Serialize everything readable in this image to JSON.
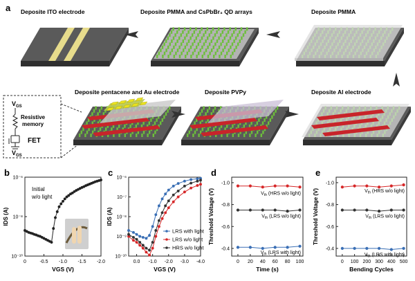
{
  "panel_a": {
    "letter": "a",
    "steps": [
      "Deposite ITO electrode",
      "Deposite PMMA and CsPbBr₃ QD arrays",
      "Deposite PMMA",
      "Deposite Al electrode",
      "Deposite PVPy",
      "Deposite pentacene and Au electrode"
    ],
    "circuit": {
      "vgs_top": "V",
      "vgs_top_sub": "GS",
      "memory_label_1": "Resistive",
      "memory_label_2": "memory",
      "fet_label": "FET",
      "vgs_bot": "V",
      "vgs_bot_sub": "GS"
    }
  },
  "colors": {
    "substrate": "#505050",
    "ito": "#e7dc8c",
    "pillar": "#6dbf3b",
    "al": "#c8242a",
    "au": "#e9e21f",
    "arrow": "#333333",
    "lrs_light": "#3a6fb5",
    "lrs_dark": "#333333",
    "hrs_dark": "#d62728"
  },
  "chart_data": [
    {
      "panel": "b",
      "type": "line",
      "ylabel": "IDS (A)",
      "xlabel": "VGS (V)",
      "annotation": [
        "Initial",
        "w/o light"
      ],
      "x_ticks": [
        "0",
        "-0.5",
        "-1.0",
        "-1.5",
        "-2.0"
      ],
      "y_ticks": [
        "10⁻⁶",
        "10⁻⁸",
        "10⁻¹⁰"
      ],
      "log_y": true,
      "xlim": [
        0,
        -2.0
      ],
      "ylim_exp": [
        -10,
        -6
      ],
      "series": [
        {
          "x": [
            0,
            -0.05,
            -0.1,
            -0.15,
            -0.2,
            -0.25,
            -0.3,
            -0.35,
            -0.4,
            -0.45,
            -0.5,
            -0.55,
            -0.6,
            -0.65,
            -0.7,
            -0.75,
            -0.8,
            -0.85,
            -0.9,
            -0.95,
            -1.0,
            -1.05,
            -1.1,
            -1.15,
            -1.2,
            -1.25,
            -1.3,
            -1.35,
            -1.4,
            -1.45,
            -1.5,
            -1.55,
            -1.6,
            -1.65,
            -1.7,
            -1.75,
            -1.8,
            -1.85,
            -1.9,
            -1.95,
            -2.0
          ],
          "logy": [
            -8.7,
            -8.75,
            -8.8,
            -8.83,
            -8.86,
            -8.9,
            -8.93,
            -8.97,
            -9.0,
            -9.05,
            -9.1,
            -9.15,
            -9.2,
            -9.25,
            -9.3,
            -8.6,
            -8.05,
            -7.75,
            -7.5,
            -7.35,
            -7.22,
            -7.1,
            -7.0,
            -6.93,
            -6.85,
            -6.8,
            -6.73,
            -6.67,
            -6.62,
            -6.57,
            -6.52,
            -6.48,
            -6.43,
            -6.39,
            -6.35,
            -6.31,
            -6.27,
            -6.23,
            -6.2,
            -6.17,
            -6.14
          ]
        }
      ]
    },
    {
      "panel": "c",
      "type": "line",
      "ylabel": "IDS (A)",
      "xlabel": "VGS (V)",
      "x_ticks": [
        "0.0",
        "-1.0",
        "-2.0",
        "-3.0",
        "-4.0"
      ],
      "y_ticks": [
        "10⁻⁶",
        "10⁻⁷",
        "10⁻⁸",
        "10⁻⁹",
        "10⁻¹⁰"
      ],
      "log_y": true,
      "xlim": [
        0.5,
        -4.0
      ],
      "ylim_exp": [
        -10,
        -6
      ],
      "legend": "right",
      "series": [
        {
          "name": "LRS with light",
          "color": "#3a6fb5",
          "x": [
            0.5,
            0.2,
            0.0,
            -0.2,
            -0.4,
            -0.6,
            -0.8,
            -1.0,
            -1.2,
            -1.4,
            -1.6,
            -1.8,
            -2.0,
            -2.3,
            -2.6,
            -3.0,
            -3.4,
            -3.8,
            -4.0
          ],
          "logy": [
            -8.7,
            -8.8,
            -8.9,
            -9.0,
            -9.05,
            -9.1,
            -8.95,
            -8.5,
            -7.9,
            -7.45,
            -7.1,
            -6.85,
            -6.65,
            -6.45,
            -6.32,
            -6.2,
            -6.12,
            -6.08,
            -6.06
          ]
        },
        {
          "name": "LRS w/o light",
          "color": "#d62728",
          "x": [
            0.5,
            0.2,
            0.0,
            -0.2,
            -0.4,
            -0.6,
            -0.8,
            -1.0,
            -1.2,
            -1.4,
            -1.6,
            -1.8,
            -2.0,
            -2.3,
            -2.6,
            -3.0,
            -3.4,
            -3.8,
            -4.0
          ],
          "logy": [
            -9.0,
            -9.2,
            -9.3,
            -9.45,
            -9.6,
            -9.8,
            -9.95,
            -9.6,
            -9.0,
            -8.5,
            -8.1,
            -7.8,
            -7.55,
            -7.25,
            -7.0,
            -6.75,
            -6.55,
            -6.42,
            -6.36
          ]
        },
        {
          "name": "HRS w/o light",
          "color": "#333333",
          "x": [
            0.5,
            0.2,
            0.0,
            -0.2,
            -0.4,
            -0.6,
            -0.8,
            -1.0,
            -1.2,
            -1.4,
            -1.6,
            -1.8,
            -2.0,
            -2.3,
            -2.6,
            -3.0,
            -3.4,
            -3.8,
            -4.0
          ],
          "logy": [
            -8.9,
            -9.05,
            -9.15,
            -9.3,
            -9.45,
            -9.6,
            -9.7,
            -9.3,
            -8.7,
            -8.2,
            -7.8,
            -7.45,
            -7.2,
            -6.9,
            -6.7,
            -6.45,
            -6.3,
            -6.2,
            -6.15
          ]
        }
      ]
    },
    {
      "panel": "d",
      "type": "line",
      "ylabel": "Threshold Voltage (V)",
      "xlabel": "Time (s)",
      "x_ticks": [
        "0",
        "20",
        "40",
        "60",
        "80",
        "100"
      ],
      "y_ticks": [
        "-0.4",
        "-0.6",
        "-0.8",
        "-1.0"
      ],
      "xlim": [
        -10,
        105
      ],
      "ylim": [
        -0.33,
        -1.05
      ],
      "series": [
        {
          "name": "Vth (LRS with light)",
          "label_main": "V",
          "label_sub": "th",
          "label_rest": " (LRS with light)",
          "color": "#3a6fb5",
          "x": [
            0,
            20,
            40,
            60,
            80,
            100
          ],
          "y": [
            -0.41,
            -0.41,
            -0.4,
            -0.41,
            -0.41,
            -0.42
          ]
        },
        {
          "name": "Vth (LRS w/o light)",
          "label_main": "V",
          "label_sub": "th",
          "label_rest": " (LRS w/o light)",
          "color": "#333333",
          "x": [
            0,
            20,
            40,
            60,
            80,
            100
          ],
          "y": [
            -0.75,
            -0.75,
            -0.75,
            -0.75,
            -0.74,
            -0.75
          ]
        },
        {
          "name": "Vth (HRS w/o light)",
          "label_main": "V",
          "label_sub": "th",
          "label_rest": " (HRS w/o light)",
          "color": "#d62728",
          "x": [
            0,
            20,
            40,
            60,
            80,
            100
          ],
          "y": [
            -0.97,
            -0.97,
            -0.96,
            -0.97,
            -0.97,
            -0.96
          ]
        }
      ]
    },
    {
      "panel": "e",
      "type": "line",
      "ylabel": "Threshold Voltage (V)",
      "xlabel": "Bending Cycles",
      "x_ticks": [
        "0",
        "100",
        "200",
        "300",
        "400",
        "500"
      ],
      "y_ticks": [
        "-0.4",
        "-0.6",
        "-0.8",
        "-1.0"
      ],
      "xlim": [
        -50,
        525
      ],
      "ylim": [
        -0.33,
        -1.05
      ],
      "series": [
        {
          "name": "Vth (LRS with light)",
          "label_main": "V",
          "label_sub": "th",
          "label_rest": " (LRS with light)",
          "color": "#3a6fb5",
          "x": [
            0,
            100,
            200,
            300,
            400,
            500
          ],
          "y": [
            -0.4,
            -0.4,
            -0.4,
            -0.4,
            -0.39,
            -0.4
          ]
        },
        {
          "name": "Vth (LRS w/o light)",
          "label_main": "V",
          "label_sub": "th",
          "label_rest": " (LRS w/o light)",
          "color": "#333333",
          "x": [
            0,
            100,
            200,
            300,
            400,
            500
          ],
          "y": [
            -0.75,
            -0.75,
            -0.75,
            -0.74,
            -0.75,
            -0.75
          ]
        },
        {
          "name": "Vth (HRS w/o light)",
          "label_main": "V",
          "label_sub": "th",
          "label_rest": " (HRS w/o light)",
          "color": "#d62728",
          "x": [
            0,
            100,
            200,
            300,
            400,
            500
          ],
          "y": [
            -0.96,
            -0.97,
            -0.97,
            -0.96,
            -0.97,
            -0.98
          ]
        }
      ]
    }
  ]
}
